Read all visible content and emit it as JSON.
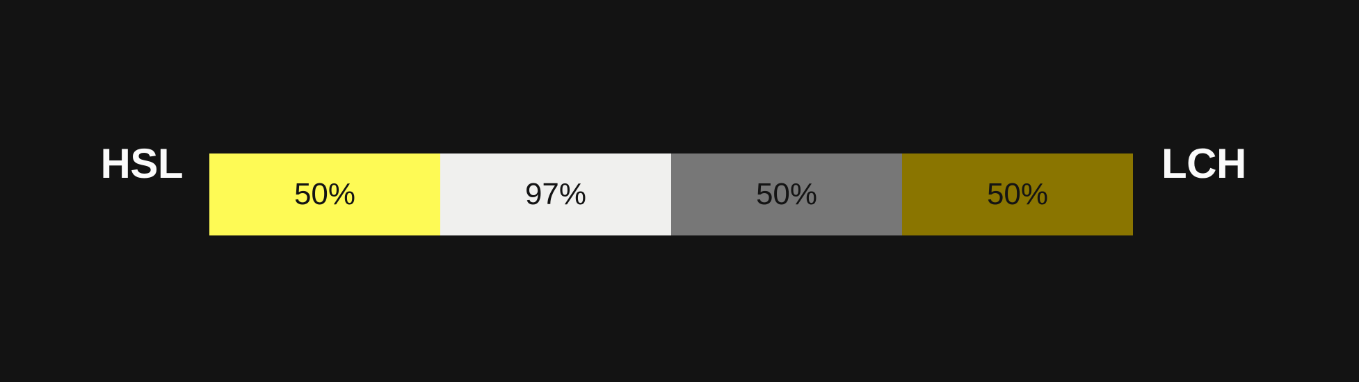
{
  "figure": {
    "background_color": "#131313",
    "left_label": "HSL",
    "right_label": "LCH",
    "label_color": "#FBFBFB",
    "value_text_color": "#141414"
  },
  "swatches": [
    {
      "id": "hsl-yellow",
      "value": "50%",
      "color": "#FEFA55"
    },
    {
      "id": "lch-near-white",
      "value": "97%",
      "color": "#F0F0EE"
    },
    {
      "id": "gray",
      "value": "50%",
      "color": "#777777"
    },
    {
      "id": "lch-olive",
      "value": "50%",
      "color": "#8A7500"
    }
  ]
}
